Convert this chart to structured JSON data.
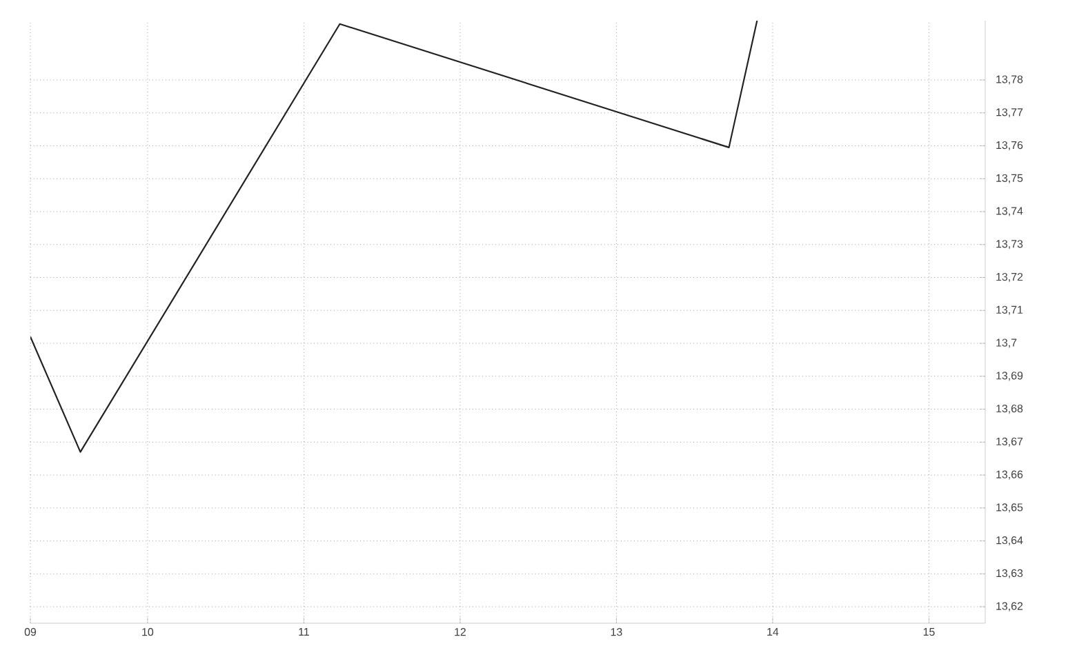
{
  "chart_data": {
    "type": "line",
    "x": [
      9.25,
      9.57,
      11.23,
      13.72,
      13.9
    ],
    "series": [
      {
        "color": "#222222",
        "values": [
          13.702,
          13.667,
          13.797,
          13.7595,
          13.798
        ]
      }
    ],
    "xlim": [
      9.25,
      15.36
    ],
    "ylim": [
      13.615,
      13.798
    ],
    "xticks": [
      {
        "value": 9.25,
        "label": "09"
      },
      {
        "value": 10,
        "label": "10"
      },
      {
        "value": 11,
        "label": "11"
      },
      {
        "value": 12,
        "label": "12"
      },
      {
        "value": 13,
        "label": "13"
      },
      {
        "value": 14,
        "label": "14"
      },
      {
        "value": 15,
        "label": "15"
      }
    ],
    "yticks": [
      {
        "value": 13.62,
        "label": "13,62"
      },
      {
        "value": 13.63,
        "label": "13,63"
      },
      {
        "value": 13.64,
        "label": "13,64"
      },
      {
        "value": 13.65,
        "label": "13,65"
      },
      {
        "value": 13.66,
        "label": "13,66"
      },
      {
        "value": 13.67,
        "label": "13,67"
      },
      {
        "value": 13.68,
        "label": "13,68"
      },
      {
        "value": 13.69,
        "label": "13,69"
      },
      {
        "value": 13.7,
        "label": "13,7"
      },
      {
        "value": 13.71,
        "label": "13,71"
      },
      {
        "value": 13.72,
        "label": "13,72"
      },
      {
        "value": 13.73,
        "label": "13,73"
      },
      {
        "value": 13.74,
        "label": "13,74"
      },
      {
        "value": 13.75,
        "label": "13,75"
      },
      {
        "value": 13.76,
        "label": "13,76"
      },
      {
        "value": 13.77,
        "label": "13,77"
      },
      {
        "value": 13.78,
        "label": "13,78"
      }
    ],
    "grid": true,
    "marker": "none",
    "line_style": "solid"
  }
}
